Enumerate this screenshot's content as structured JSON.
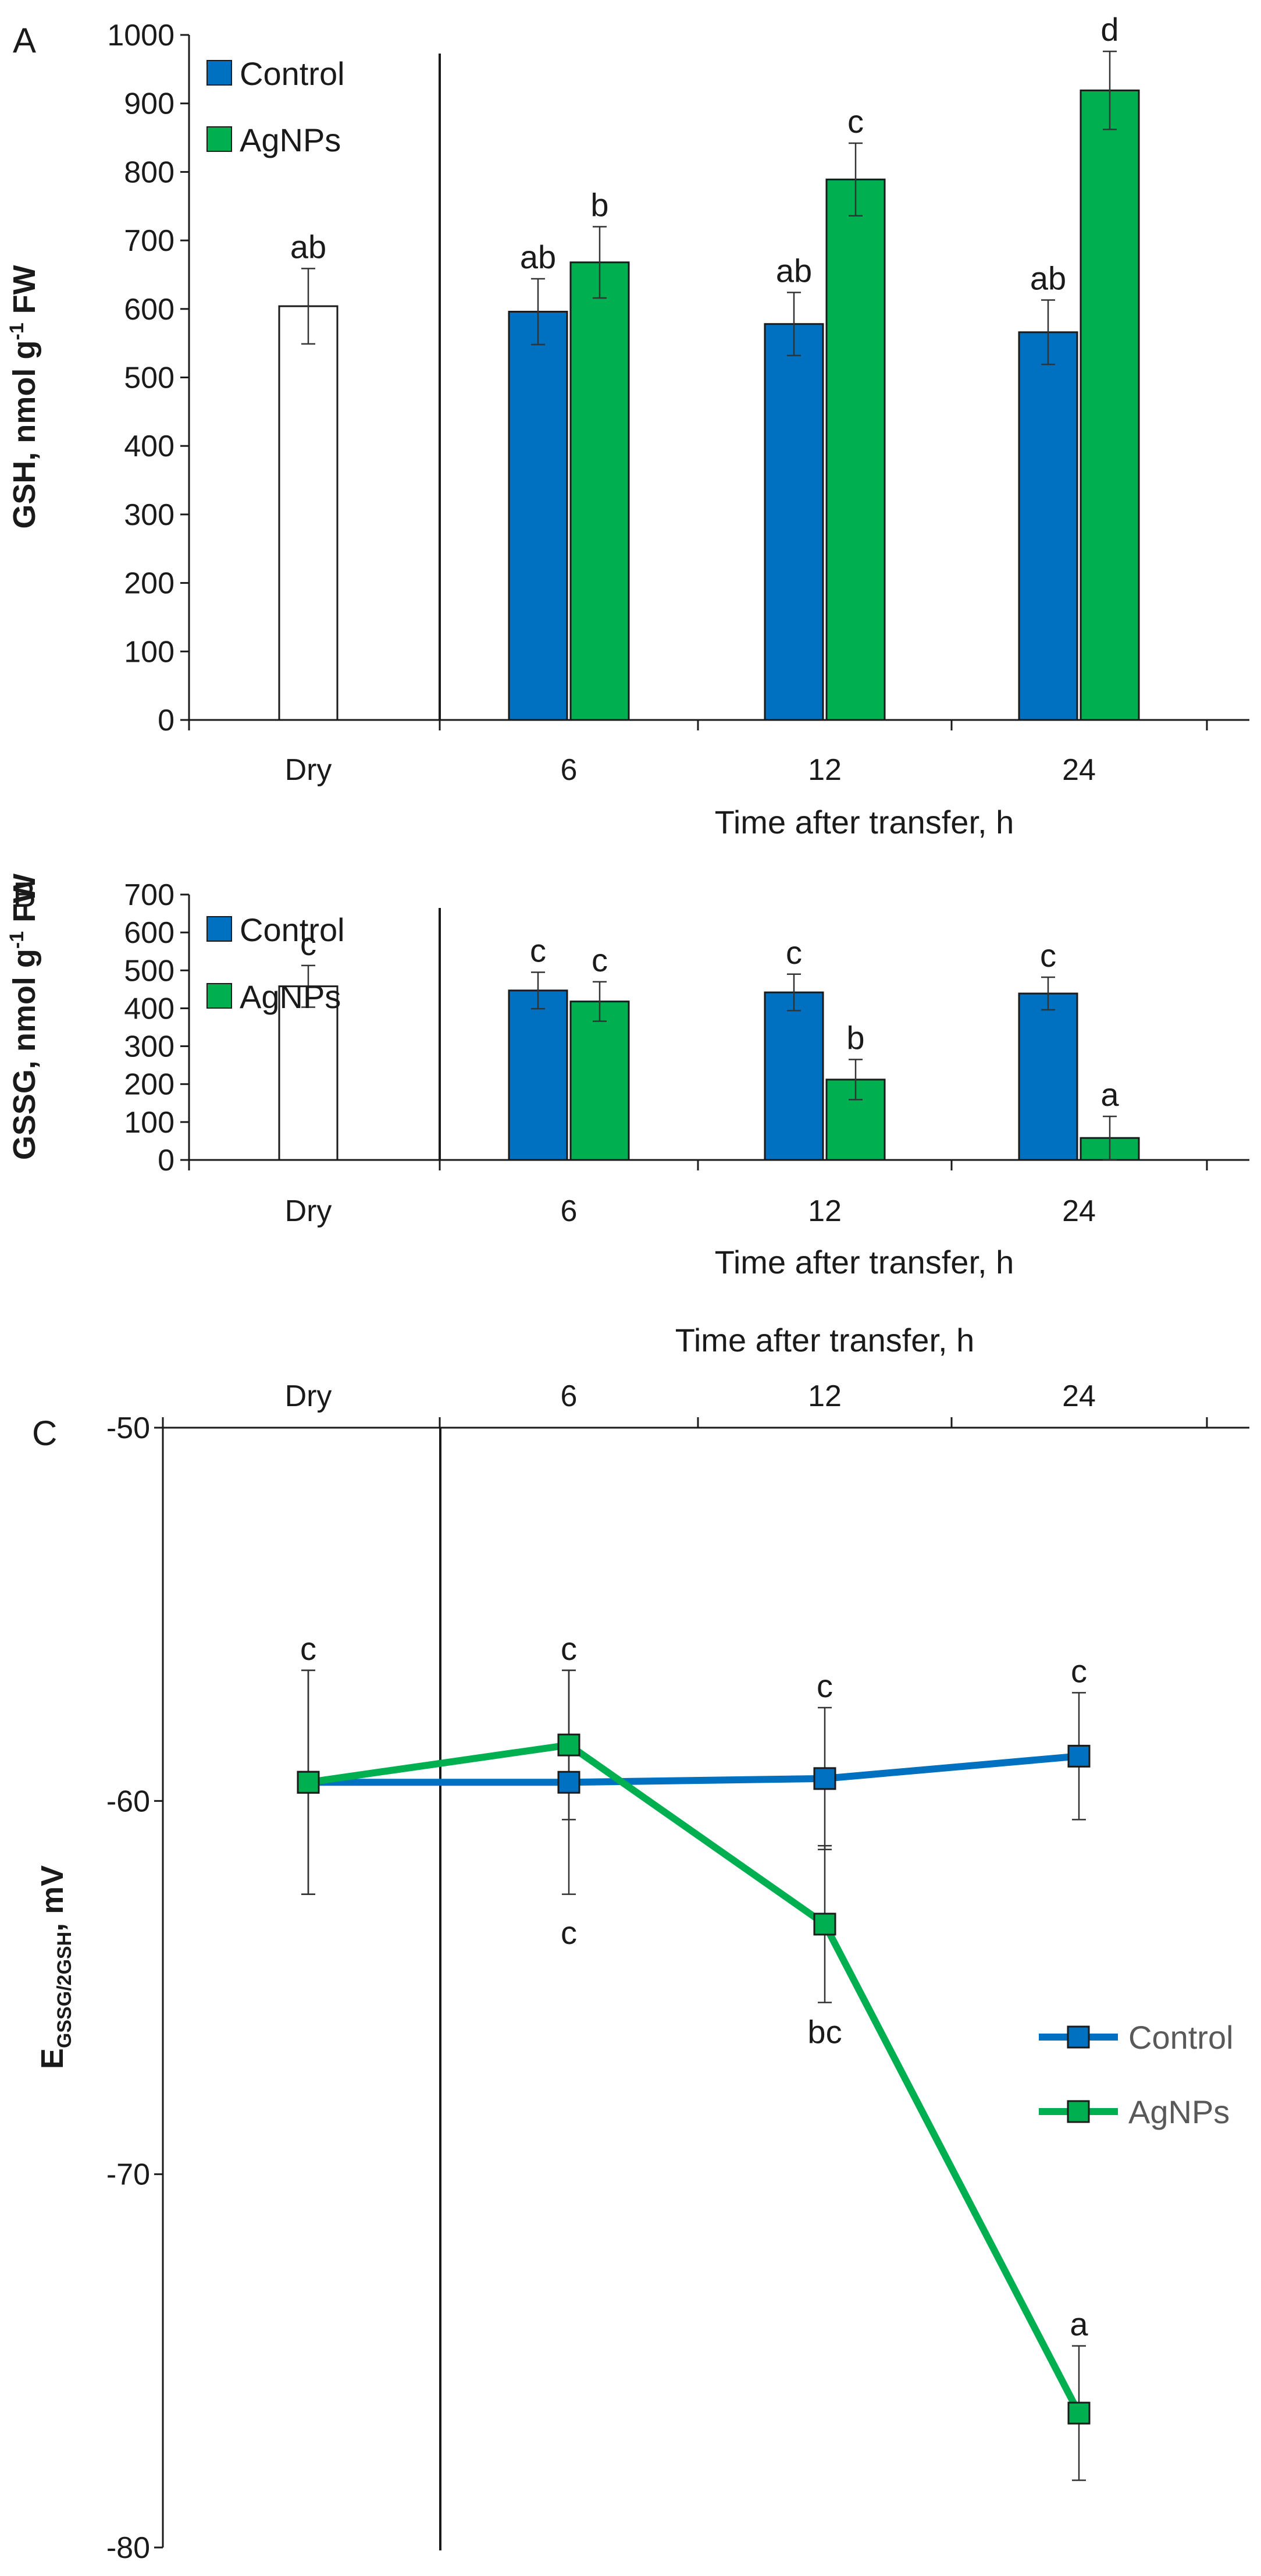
{
  "colors": {
    "control": "#0070C0",
    "agnps": "#00B050",
    "dry": "#ffffff",
    "axis": "#1a1a1a",
    "legend_text_c": "#595959"
  },
  "chart_data": [
    {
      "panel_label": "A",
      "type": "bar",
      "ylabel_main": "GSH, nmol g",
      "ylabel_sup": "-1",
      "ylabel_end": " FW",
      "xlabel": "Time  after transfer, h",
      "ylim": [
        0,
        1000
      ],
      "yticks": [
        0,
        100,
        200,
        300,
        400,
        500,
        600,
        700,
        800,
        900,
        1000
      ],
      "categories": [
        "Dry",
        "6",
        "12",
        "24"
      ],
      "legend": [
        "Control",
        "AgNPs"
      ],
      "series": [
        {
          "name": "Control",
          "values": [
            604,
            596,
            578,
            566
          ],
          "errors": [
            55,
            48,
            46,
            47
          ],
          "labels": [
            "ab",
            "ab",
            "ab",
            "ab"
          ]
        },
        {
          "name": "AgNPs",
          "values": [
            null,
            668,
            789,
            919
          ],
          "errors": [
            null,
            52,
            53,
            57
          ],
          "labels": [
            null,
            "b",
            "c",
            "d"
          ]
        }
      ]
    },
    {
      "panel_label": "B",
      "type": "bar",
      "ylabel_main": "GSSG, nmol g",
      "ylabel_sup": "-1",
      "ylabel_end": " FW",
      "xlabel": "Time  after transfer, h",
      "ylim": [
        0,
        700
      ],
      "yticks": [
        0,
        100,
        200,
        300,
        400,
        500,
        600,
        700
      ],
      "categories": [
        "Dry",
        "6",
        "12",
        "24"
      ],
      "legend": [
        "Control",
        "AgNPs"
      ],
      "series": [
        {
          "name": "Control",
          "values": [
            458,
            447,
            442,
            439
          ],
          "errors": [
            55,
            48,
            48,
            43
          ],
          "labels": [
            "c",
            "c",
            "c",
            "c"
          ]
        },
        {
          "name": "AgNPs",
          "values": [
            null,
            418,
            212,
            58
          ],
          "errors": [
            null,
            52,
            53,
            57
          ],
          "labels": [
            null,
            "c",
            "b",
            "a"
          ]
        }
      ]
    },
    {
      "panel_label": "C",
      "type": "line",
      "ylabel_main": "E",
      "ylabel_sub": "GSSG/2GSH",
      "ylabel_end": ",  mV",
      "xlabel": "Time  after transfer, h",
      "ylim": [
        -80,
        -50
      ],
      "yticks": [
        -50,
        -60,
        -70,
        -80
      ],
      "categories": [
        "Dry",
        "6",
        "12",
        "24"
      ],
      "legend": [
        "Control",
        "AgNPs"
      ],
      "series": [
        {
          "name": "Control",
          "values": [
            -59.5,
            -59.5,
            -59.4,
            -58.8
          ],
          "errors": [
            3.0,
            3.0,
            1.9,
            1.7
          ],
          "labels": [
            "c",
            "c",
            "c",
            "c"
          ]
        },
        {
          "name": "AgNPs",
          "values": [
            -59.5,
            -58.5,
            -63.3,
            -76.4
          ],
          "errors": [
            3.0,
            2.0,
            2.1,
            1.8
          ],
          "labels": [
            null,
            "c",
            "bc",
            "a"
          ]
        }
      ]
    }
  ]
}
